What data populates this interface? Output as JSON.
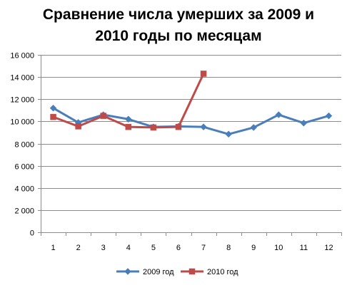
{
  "chart_data": {
    "type": "line",
    "title_line1": "Сравнение числа умерших за 2009 и",
    "title_line2": "2010 годы по месяцам",
    "categories": [
      "1",
      "2",
      "3",
      "4",
      "5",
      "6",
      "7",
      "8",
      "9",
      "10",
      "11",
      "12"
    ],
    "y_ticks": [
      "0",
      "2 000",
      "4 000",
      "6 000",
      "8 000",
      "10 000",
      "12 000",
      "14 000",
      "16 000"
    ],
    "ylim": [
      0,
      16000
    ],
    "grid": "horizontal-major",
    "legend_position": "bottom",
    "series": [
      {
        "name": "2009 год",
        "color": "#4A7EBB",
        "marker": "diamond",
        "values": [
          11200,
          9900,
          10600,
          10200,
          9500,
          9550,
          9500,
          8850,
          9450,
          10600,
          9850,
          10500
        ]
      },
      {
        "name": "2010 год",
        "color": "#BE4B48",
        "marker": "square",
        "values": [
          10400,
          9550,
          10500,
          9500,
          9450,
          9500,
          14300,
          null,
          null,
          null,
          null,
          null
        ]
      }
    ]
  }
}
